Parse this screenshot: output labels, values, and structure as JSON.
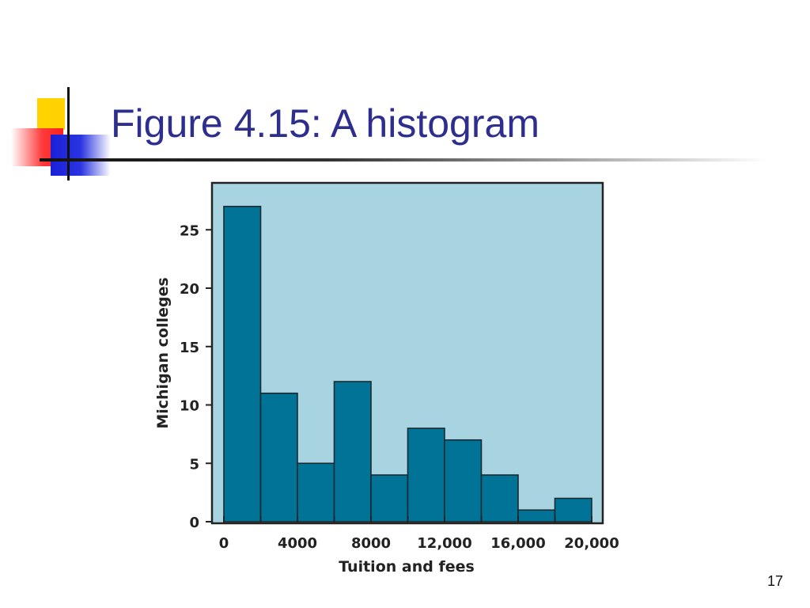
{
  "slide": {
    "title": "Figure 4.15: A histogram",
    "page_number": "17"
  },
  "colors": {
    "title": "#2e2e8f",
    "plot_background": "#a8d3e1",
    "bar_fill": "#007396",
    "bar_stroke": "#1a2a30",
    "deco_yellow": "#ffd200",
    "deco_red": "#ff2020",
    "deco_blue": "#1a20d8"
  },
  "chart_data": {
    "type": "bar",
    "xlabel": "Tuition and fees",
    "ylabel": "Michigan colleges",
    "bin_width": 2000,
    "bins": [
      {
        "start": 0,
        "end": 2000,
        "count": 27
      },
      {
        "start": 2000,
        "end": 4000,
        "count": 11
      },
      {
        "start": 4000,
        "end": 6000,
        "count": 5
      },
      {
        "start": 6000,
        "end": 8000,
        "count": 12
      },
      {
        "start": 8000,
        "end": 10000,
        "count": 4
      },
      {
        "start": 10000,
        "end": 12000,
        "count": 8
      },
      {
        "start": 12000,
        "end": 14000,
        "count": 7
      },
      {
        "start": 14000,
        "end": 16000,
        "count": 4
      },
      {
        "start": 16000,
        "end": 18000,
        "count": 1
      },
      {
        "start": 18000,
        "end": 20000,
        "count": 2
      }
    ],
    "xlim": [
      0,
      20000
    ],
    "ylim": [
      0,
      27
    ],
    "x_ticks": [
      0,
      2000,
      4000,
      6000,
      8000,
      10000,
      12000,
      14000,
      16000,
      18000,
      20000
    ],
    "x_tick_labels": [
      {
        "value": 0,
        "label": "0"
      },
      {
        "value": 4000,
        "label": "4000"
      },
      {
        "value": 8000,
        "label": "8000"
      },
      {
        "value": 12000,
        "label": "12,000"
      },
      {
        "value": 16000,
        "label": "16,000"
      },
      {
        "value": 20000,
        "label": "20,000"
      }
    ],
    "y_ticks": [
      0,
      5,
      10,
      15,
      20,
      25
    ],
    "y_tick_labels": [
      "0",
      "5",
      "10",
      "15",
      "20",
      "25"
    ],
    "grid": false,
    "legend": false
  }
}
